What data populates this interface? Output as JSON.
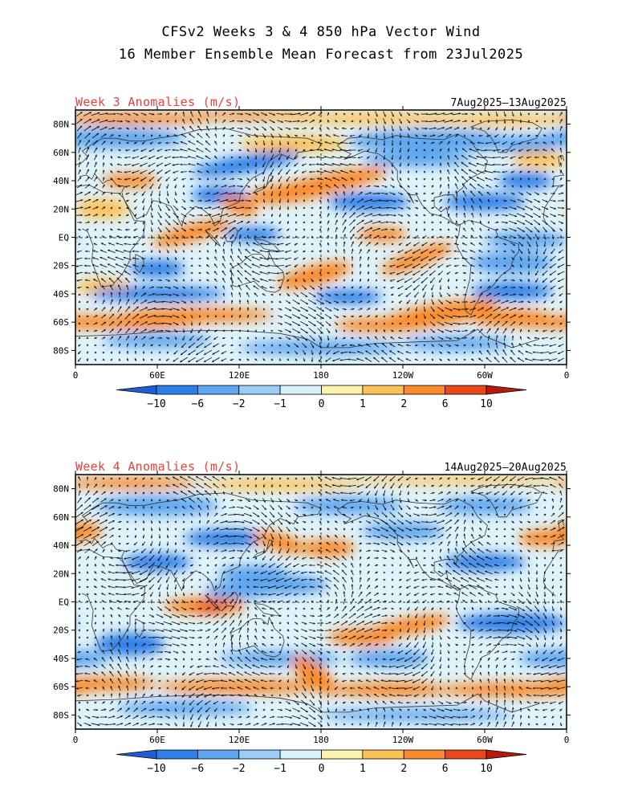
{
  "title_line1": "CFSv2 Weeks 3 & 4 850 hPa Vector Wind",
  "title_line2": "16 Member Ensemble Mean Forecast from 23Jul2025",
  "panels": [
    {
      "label": "Week 3 Anomalies (m/s)",
      "dates": "7Aug2025—13Aug2025"
    },
    {
      "label": "Week 4 Anomalies (m/s)",
      "dates": "14Aug2025—20Aug2025"
    }
  ],
  "lat_labels": [
    "80N",
    "60N",
    "40N",
    "20N",
    "EQ",
    "20S",
    "40S",
    "60S",
    "80S"
  ],
  "lon_labels": [
    "0",
    "60E",
    "120E",
    "180",
    "120W",
    "60W",
    "0"
  ],
  "colorbar": {
    "labels": [
      "-10",
      "-6",
      "-2",
      "-1",
      "0",
      "1",
      "2",
      "6",
      "10"
    ],
    "colors": [
      "#1f5fd6",
      "#2e7fe8",
      "#5ea6f0",
      "#9ccdf7",
      "#d8f2fb",
      "#fdf3ae",
      "#fdc256",
      "#f98a2b",
      "#e8471b",
      "#b71c0a"
    ]
  }
}
